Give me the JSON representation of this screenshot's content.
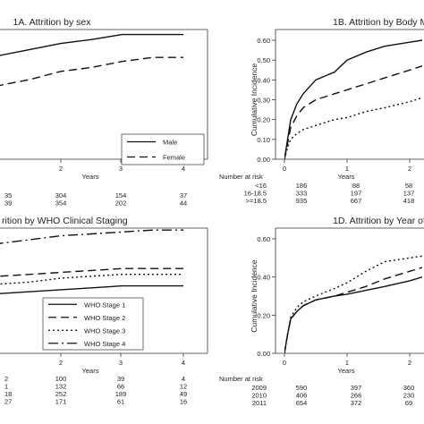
{
  "chart_data": [
    {
      "type": "line",
      "panel": "1A",
      "title": "1A. Attrition by sex",
      "xlabel": "Years",
      "ylabel": "",
      "xticks": [
        "2",
        "3",
        "4"
      ],
      "yticks": [],
      "xlim": [
        0,
        4
      ],
      "ylim": [
        0,
        0.65
      ],
      "legend_position": "bottom-right",
      "series": [
        {
          "name": "Male",
          "style": "solid",
          "points": [
            [
              0,
              0.38
            ],
            [
              0.5,
              0.47
            ],
            [
              1,
              0.52
            ],
            [
              1.5,
              0.55
            ],
            [
              2,
              0.58
            ],
            [
              2.5,
              0.6
            ],
            [
              3,
              0.625
            ],
            [
              4,
              0.625
            ]
          ]
        },
        {
          "name": "Female",
          "style": "dash",
          "points": [
            [
              0,
              0.24
            ],
            [
              0.5,
              0.32
            ],
            [
              1,
              0.37
            ],
            [
              1.5,
              0.4
            ],
            [
              2,
              0.44
            ],
            [
              2.5,
              0.46
            ],
            [
              3,
              0.49
            ],
            [
              3.5,
              0.51
            ],
            [
              4,
              0.51
            ]
          ]
        }
      ],
      "risk_table": {
        "header": "",
        "rows": [
          {
            "label": "",
            "values": [
              "35",
              "304",
              "154",
              "37"
            ]
          },
          {
            "label": "",
            "values": [
              "39",
              "354",
              "202",
              "44"
            ]
          }
        ]
      }
    },
    {
      "type": "line",
      "panel": "1B",
      "title": "1B. Attrition by Body M",
      "xlabel": "Years",
      "ylabel": "Cumulative Incidence",
      "xticks": [
        "0",
        "1",
        "2"
      ],
      "yticks": [
        "0.00",
        "0.10",
        "0.20",
        "0.30",
        "0.40",
        "0.50",
        "0.60"
      ],
      "xlim": [
        0,
        2.2
      ],
      "ylim": [
        0,
        0.65
      ],
      "series": [
        {
          "name": "<16",
          "style": "solid",
          "points": [
            [
              0,
              0
            ],
            [
              0.05,
              0.1
            ],
            [
              0.1,
              0.2
            ],
            [
              0.2,
              0.28
            ],
            [
              0.3,
              0.33
            ],
            [
              0.5,
              0.4
            ],
            [
              0.8,
              0.44
            ],
            [
              1,
              0.5
            ],
            [
              1.3,
              0.54
            ],
            [
              1.6,
              0.57
            ],
            [
              2,
              0.59
            ],
            [
              2.2,
              0.6
            ]
          ]
        },
        {
          "name": "16-18.5",
          "style": "dash",
          "points": [
            [
              0,
              0
            ],
            [
              0.05,
              0.08
            ],
            [
              0.1,
              0.16
            ],
            [
              0.2,
              0.22
            ],
            [
              0.3,
              0.26
            ],
            [
              0.5,
              0.3
            ],
            [
              0.8,
              0.33
            ],
            [
              1,
              0.35
            ],
            [
              1.3,
              0.38
            ],
            [
              1.6,
              0.41
            ],
            [
              2,
              0.45
            ],
            [
              2.2,
              0.47
            ]
          ]
        },
        {
          "name": ">=18.5",
          "style": "dot",
          "points": [
            [
              0,
              0
            ],
            [
              0.05,
              0.06
            ],
            [
              0.1,
              0.1
            ],
            [
              0.2,
              0.13
            ],
            [
              0.3,
              0.15
            ],
            [
              0.5,
              0.17
            ],
            [
              0.8,
              0.2
            ],
            [
              1,
              0.21
            ],
            [
              1.3,
              0.24
            ],
            [
              1.6,
              0.26
            ],
            [
              2,
              0.29
            ],
            [
              2.2,
              0.31
            ]
          ]
        }
      ],
      "risk_table": {
        "header": "Number at risk",
        "rows": [
          {
            "label": "<16",
            "values": [
              "186",
              "88",
              "58"
            ]
          },
          {
            "label": "16-18.5",
            "values": [
              "333",
              "197",
              "137"
            ]
          },
          {
            "label": ">=18.5",
            "values": [
              "935",
              "667",
              "418"
            ]
          }
        ]
      }
    },
    {
      "type": "line",
      "panel": "1C",
      "title": "rition by WHO Clinical Staging",
      "xlabel": "Years",
      "ylabel": "",
      "xticks": [
        "2",
        "3",
        "4"
      ],
      "yticks": [],
      "xlim": [
        0,
        4
      ],
      "ylim": [
        0,
        0.65
      ],
      "legend_position": "bottom-right",
      "series": [
        {
          "name": "WHO Stage 1",
          "style": "solid",
          "points": [
            [
              0,
              0.26
            ],
            [
              0.5,
              0.29
            ],
            [
              1,
              0.31
            ],
            [
              1.5,
              0.32
            ],
            [
              2,
              0.33
            ],
            [
              2.5,
              0.34
            ],
            [
              3,
              0.35
            ],
            [
              3.5,
              0.35
            ],
            [
              4,
              0.35
            ]
          ]
        },
        {
          "name": "WHO Stage 2",
          "style": "dash",
          "points": [
            [
              0,
              0.36
            ],
            [
              0.5,
              0.38
            ],
            [
              1,
              0.4
            ],
            [
              1.5,
              0.41
            ],
            [
              2,
              0.42
            ],
            [
              2.5,
              0.43
            ],
            [
              3,
              0.44
            ],
            [
              3.5,
              0.44
            ],
            [
              4,
              0.44
            ]
          ]
        },
        {
          "name": "WHO Stage 3",
          "style": "dot",
          "points": [
            [
              0,
              0.32
            ],
            [
              0.5,
              0.34
            ],
            [
              1,
              0.36
            ],
            [
              1.5,
              0.37
            ],
            [
              2,
              0.39
            ],
            [
              2.5,
              0.4
            ],
            [
              3,
              0.41
            ],
            [
              3.5,
              0.41
            ],
            [
              4,
              0.41
            ]
          ]
        },
        {
          "name": "WHO Stage 4",
          "style": "dashdot",
          "points": [
            [
              0,
              0.51
            ],
            [
              0.5,
              0.55
            ],
            [
              1,
              0.57
            ],
            [
              1.5,
              0.59
            ],
            [
              2,
              0.61
            ],
            [
              2.5,
              0.62
            ],
            [
              3,
              0.63
            ],
            [
              3.5,
              0.64
            ],
            [
              4,
              0.64
            ]
          ]
        }
      ],
      "risk_table": {
        "header": "",
        "rows": [
          {
            "label": "",
            "values": [
              "2",
              "100",
              "39",
              "4"
            ]
          },
          {
            "label": "",
            "values": [
              "1",
              "132",
              "66",
              "12"
            ]
          },
          {
            "label": "",
            "values": [
              "18",
              "252",
              "189",
              "49"
            ]
          },
          {
            "label": "",
            "values": [
              "27",
              "171",
              "61",
              "16"
            ]
          }
        ]
      }
    },
    {
      "type": "line",
      "panel": "1D",
      "title": "1D. Attrition by Year of",
      "xlabel": "Years",
      "ylabel": "Cumulative Incidence",
      "xticks": [
        "0",
        "1",
        "2"
      ],
      "yticks": [
        "0.00",
        "0.20",
        "0.40",
        "0.60"
      ],
      "xlim": [
        0,
        2.2
      ],
      "ylim": [
        0,
        0.65
      ],
      "series": [
        {
          "name": "2009",
          "style": "solid",
          "points": [
            [
              0,
              0
            ],
            [
              0.05,
              0.1
            ],
            [
              0.1,
              0.18
            ],
            [
              0.2,
              0.22
            ],
            [
              0.3,
              0.25
            ],
            [
              0.5,
              0.28
            ],
            [
              0.8,
              0.3
            ],
            [
              1,
              0.31
            ],
            [
              1.3,
              0.33
            ],
            [
              1.6,
              0.35
            ],
            [
              2,
              0.38
            ],
            [
              2.2,
              0.4
            ]
          ]
        },
        {
          "name": "2010",
          "style": "dash",
          "points": [
            [
              0,
              0
            ],
            [
              0.05,
              0.1
            ],
            [
              0.1,
              0.18
            ],
            [
              0.2,
              0.22
            ],
            [
              0.3,
              0.25
            ],
            [
              0.5,
              0.28
            ],
            [
              0.8,
              0.3
            ],
            [
              1,
              0.32
            ],
            [
              1.3,
              0.35
            ],
            [
              1.6,
              0.39
            ],
            [
              2,
              0.43
            ],
            [
              2.2,
              0.45
            ]
          ]
        },
        {
          "name": "2011",
          "style": "dot",
          "points": [
            [
              0,
              0
            ],
            [
              0.05,
              0.1
            ],
            [
              0.1,
              0.19
            ],
            [
              0.2,
              0.24
            ],
            [
              0.3,
              0.27
            ],
            [
              0.5,
              0.3
            ],
            [
              0.8,
              0.34
            ],
            [
              1,
              0.37
            ],
            [
              1.3,
              0.43
            ],
            [
              1.6,
              0.48
            ],
            [
              2,
              0.5
            ],
            [
              2.2,
              0.51
            ]
          ]
        }
      ],
      "risk_table": {
        "header": "Number at risk",
        "rows": [
          {
            "label": "2009",
            "values": [
              "590",
              "397",
              "360"
            ]
          },
          {
            "label": "2010",
            "values": [
              "406",
              "266",
              "230"
            ]
          },
          {
            "label": "2011",
            "values": [
              "654",
              "372",
              "69"
            ]
          }
        ]
      }
    }
  ]
}
